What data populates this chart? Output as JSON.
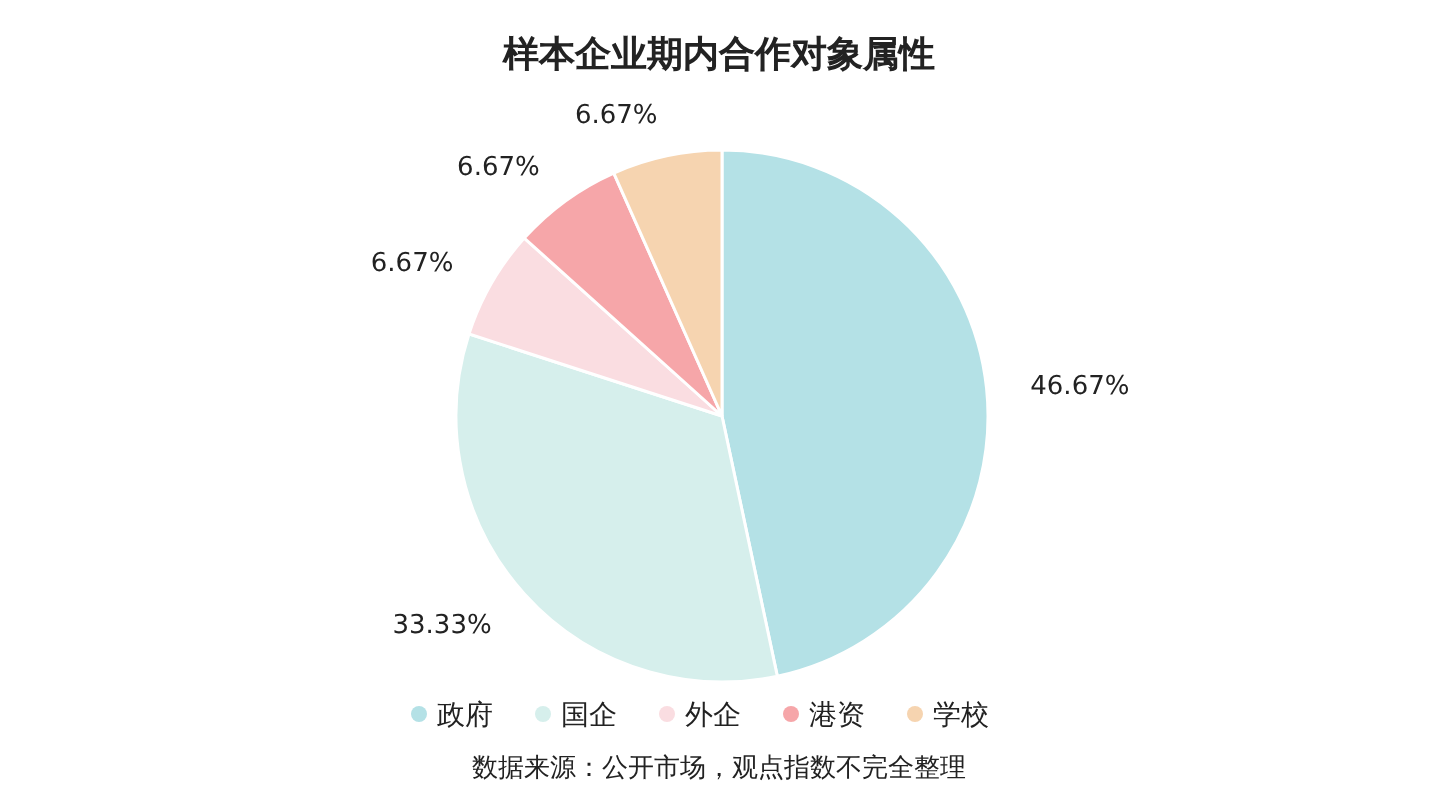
{
  "chart_data": {
    "type": "pie",
    "title": "样本企业期内合作对象属性",
    "categories": [
      "政府",
      "国企",
      "外企",
      "港资",
      "学校"
    ],
    "values": [
      46.67,
      33.33,
      6.67,
      6.67,
      6.67
    ],
    "value_labels": [
      "46.67%",
      "33.33%",
      "6.67%",
      "6.67%",
      "6.67%"
    ],
    "colors": [
      "#b4e1e6",
      "#d6efec",
      "#fadde1",
      "#f6a6a9",
      "#f6d4b0"
    ],
    "legend": "bottom",
    "annotations": [
      "数据来源：公开市场，观点指数不完全整理"
    ]
  }
}
